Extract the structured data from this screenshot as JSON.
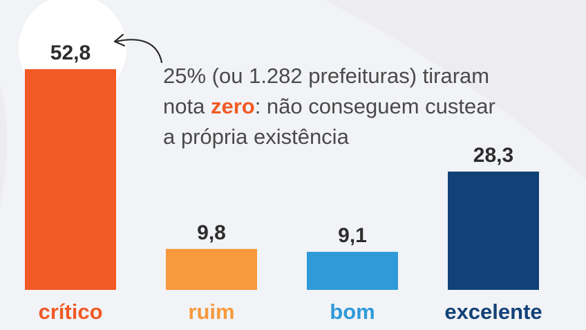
{
  "chart_data": {
    "type": "bar",
    "categories": [
      "crítico",
      "ruim",
      "bom",
      "excelente"
    ],
    "values": [
      52.8,
      9.8,
      9.1,
      28.3
    ],
    "value_labels": [
      "52,8",
      "9,8",
      "9,1",
      "28,3"
    ],
    "colors": [
      "#f15a24",
      "#f7993d",
      "#2f9ad8",
      "#124178"
    ],
    "ylim": [
      0,
      55
    ],
    "grid": false,
    "legend": "none",
    "annotation": {
      "target": "crítico",
      "line1": "25% (ou 1.282 prefeituras) tiraram",
      "line2_before": "nota ",
      "line2_highlight": "zero",
      "line2_after": ": não conseguem custear",
      "line3": "a própria existência",
      "highlight_color": "#f15a24"
    }
  }
}
